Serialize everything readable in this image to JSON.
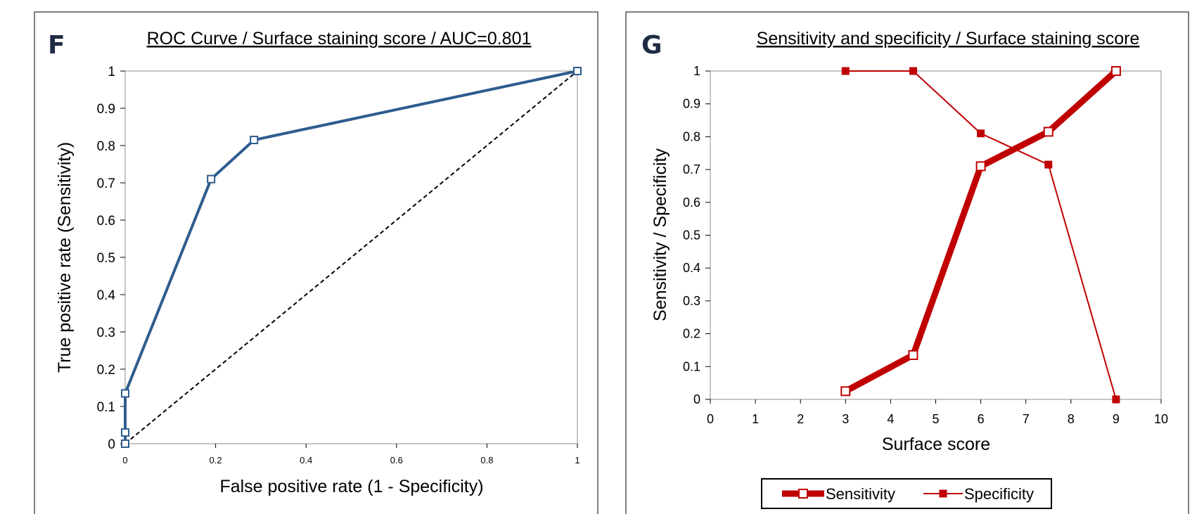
{
  "panels": {
    "left": {
      "letter": "F"
    },
    "right": {
      "letter": "G"
    }
  },
  "chart_data": [
    {
      "type": "line",
      "title": "ROC Curve / Surface staining score / AUC=0.801",
      "xlabel": "False positive rate (1 - Specificity)",
      "ylabel": "True positive rate (Sensitivity)",
      "xlim": [
        0,
        1
      ],
      "ylim": [
        0,
        1
      ],
      "x_ticks": [
        "0",
        "0.2",
        "0.4",
        "0.6",
        "0.8",
        "1"
      ],
      "y_ticks": [
        "0",
        "0.1",
        "0.2",
        "0.3",
        "0.4",
        "0.5",
        "0.6",
        "0.7",
        "0.8",
        "0.9",
        "1"
      ],
      "grid": false,
      "series": [
        {
          "color": "#2e5c8e",
          "marker": "open-square",
          "points": [
            [
              0,
              0
            ],
            [
              0,
              0.03
            ],
            [
              0,
              0.135
            ],
            [
              0.19,
              0.71
            ],
            [
              0.285,
              0.815
            ],
            [
              1,
              1
            ]
          ]
        },
        {
          "color": "#000000",
          "style": "dashed",
          "points": [
            [
              0,
              0
            ],
            [
              1,
              1
            ]
          ]
        }
      ]
    },
    {
      "type": "line",
      "title": "Sensitivity and specificity / Surface staining score",
      "xlabel": "Surface score",
      "ylabel": "Sensitivity / Specificity",
      "xlim": [
        0,
        10
      ],
      "ylim": [
        0,
        1
      ],
      "x_ticks": [
        "0",
        "1",
        "2",
        "3",
        "4",
        "5",
        "6",
        "7",
        "8",
        "9",
        "10"
      ],
      "y_ticks": [
        "0",
        "0.1",
        "0.2",
        "0.3",
        "0.4",
        "0.5",
        "0.6",
        "0.7",
        "0.8",
        "0.9",
        "1"
      ],
      "grid": false,
      "legend_position": "bottom",
      "series": [
        {
          "name": "Sensitivity",
          "color": "#c00000",
          "marker": "open-square",
          "style": "thick",
          "points": [
            [
              3,
              0.025
            ],
            [
              4.5,
              0.135
            ],
            [
              6,
              0.71
            ],
            [
              7.5,
              0.815
            ],
            [
              9,
              1
            ]
          ]
        },
        {
          "name": "Specificity",
          "color": "#c00000",
          "marker": "filled-square",
          "style": "thin",
          "points": [
            [
              3,
              1
            ],
            [
              4.5,
              1
            ],
            [
              6,
              0.81
            ],
            [
              7.5,
              0.715
            ],
            [
              9,
              0
            ]
          ]
        }
      ]
    }
  ]
}
